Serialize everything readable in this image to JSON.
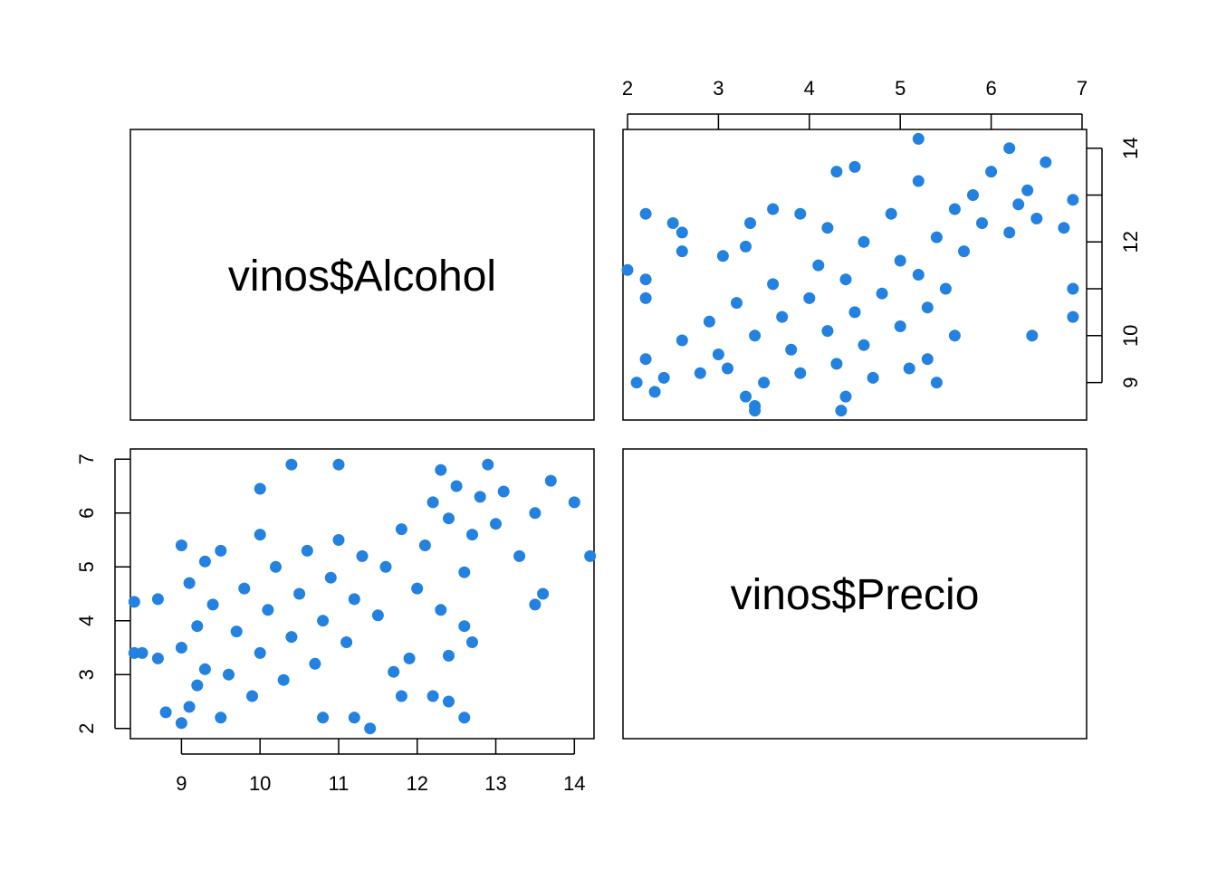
{
  "chart_data": {
    "type": "scatter",
    "variables": [
      "vinos$Alcohol",
      "vinos$Precio"
    ],
    "point_color": "#2381e0",
    "panels": [
      {
        "position": "row1-col2",
        "x_variable": "vinos$Precio",
        "y_variable": "vinos$Alcohol",
        "xlim": [
          1.95,
          7.05
        ],
        "ylim": [
          8.2,
          14.4
        ],
        "x_ticks": [
          2,
          3,
          4,
          5,
          6,
          7
        ],
        "y_ticks": [
          9,
          10,
          11,
          12,
          13,
          14
        ],
        "y_tick_labels": [
          "9",
          "10",
          "",
          "12",
          "",
          "14"
        ]
      },
      {
        "position": "row2-col1",
        "x_variable": "vinos$Alcohol",
        "y_variable": "vinos$Precio",
        "xlim": [
          8.35,
          14.25
        ],
        "ylim": [
          1.81,
          7.19
        ],
        "x_ticks": [
          9,
          10,
          11,
          12,
          13,
          14
        ],
        "y_ticks": [
          2,
          3,
          4,
          5,
          6,
          7
        ]
      }
    ],
    "points": [
      {
        "alcohol": 9.0,
        "precio": 2.1
      },
      {
        "alcohol": 9.1,
        "precio": 2.4
      },
      {
        "alcohol": 9.2,
        "precio": 2.8
      },
      {
        "alcohol": 9.3,
        "precio": 3.1
      },
      {
        "alcohol": 9.0,
        "precio": 3.5
      },
      {
        "alcohol": 9.2,
        "precio": 3.9
      },
      {
        "alcohol": 9.4,
        "precio": 4.3
      },
      {
        "alcohol": 9.1,
        "precio": 4.7
      },
      {
        "alcohol": 9.3,
        "precio": 5.1
      },
      {
        "alcohol": 9.0,
        "precio": 5.4
      },
      {
        "alcohol": 9.5,
        "precio": 2.2
      },
      {
        "alcohol": 9.6,
        "precio": 3.0
      },
      {
        "alcohol": 9.7,
        "precio": 3.8
      },
      {
        "alcohol": 9.8,
        "precio": 4.6
      },
      {
        "alcohol": 9.5,
        "precio": 5.3
      },
      {
        "alcohol": 9.9,
        "precio": 2.6
      },
      {
        "alcohol": 10.0,
        "precio": 3.4
      },
      {
        "alcohol": 10.1,
        "precio": 4.2
      },
      {
        "alcohol": 10.2,
        "precio": 5.0
      },
      {
        "alcohol": 10.0,
        "precio": 5.6
      },
      {
        "alcohol": 10.3,
        "precio": 2.9
      },
      {
        "alcohol": 10.4,
        "precio": 3.7
      },
      {
        "alcohol": 10.5,
        "precio": 4.5
      },
      {
        "alcohol": 10.6,
        "precio": 5.3
      },
      {
        "alcohol": 10.7,
        "precio": 3.2
      },
      {
        "alcohol": 10.8,
        "precio": 4.0
      },
      {
        "alcohol": 10.9,
        "precio": 4.8
      },
      {
        "alcohol": 11.0,
        "precio": 5.5
      },
      {
        "alcohol": 11.1,
        "precio": 3.6
      },
      {
        "alcohol": 11.2,
        "precio": 4.4
      },
      {
        "alcohol": 11.3,
        "precio": 5.2
      },
      {
        "alcohol": 11.5,
        "precio": 4.1
      },
      {
        "alcohol": 11.6,
        "precio": 5.0
      },
      {
        "alcohol": 11.8,
        "precio": 5.7
      },
      {
        "alcohol": 12.0,
        "precio": 4.6
      },
      {
        "alcohol": 12.1,
        "precio": 5.4
      },
      {
        "alcohol": 12.2,
        "precio": 6.2
      },
      {
        "alcohol": 12.3,
        "precio": 6.8
      },
      {
        "alcohol": 12.4,
        "precio": 5.9
      },
      {
        "alcohol": 12.5,
        "precio": 6.5
      },
      {
        "alcohol": 12.6,
        "precio": 4.9
      },
      {
        "alcohol": 12.7,
        "precio": 5.6
      },
      {
        "alcohol": 12.8,
        "precio": 6.3
      },
      {
        "alcohol": 12.9,
        "precio": 6.9
      },
      {
        "alcohol": 13.0,
        "precio": 5.8
      },
      {
        "alcohol": 13.1,
        "precio": 6.4
      },
      {
        "alcohol": 13.3,
        "precio": 5.2
      },
      {
        "alcohol": 13.5,
        "precio": 6.0
      },
      {
        "alcohol": 13.7,
        "precio": 6.6
      },
      {
        "alcohol": 14.0,
        "precio": 6.2
      },
      {
        "alcohol": 14.2,
        "precio": 5.2
      },
      {
        "alcohol": 12.3,
        "precio": 4.2
      },
      {
        "alcohol": 12.6,
        "precio": 3.9
      },
      {
        "alcohol": 11.9,
        "precio": 3.3
      },
      {
        "alcohol": 12.2,
        "precio": 2.6
      },
      {
        "alcohol": 12.6,
        "precio": 2.2
      },
      {
        "alcohol": 11.4,
        "precio": 2.0
      },
      {
        "alcohol": 8.4,
        "precio": 4.35
      },
      {
        "alcohol": 8.7,
        "precio": 4.4
      },
      {
        "alcohol": 8.4,
        "precio": 3.4
      },
      {
        "alcohol": 8.5,
        "precio": 3.4
      },
      {
        "alcohol": 8.7,
        "precio": 3.3
      },
      {
        "alcohol": 8.8,
        "precio": 2.3
      },
      {
        "alcohol": 10.4,
        "precio": 6.9
      },
      {
        "alcohol": 11.0,
        "precio": 6.9
      },
      {
        "alcohol": 10.0,
        "precio": 6.45
      },
      {
        "alcohol": 13.6,
        "precio": 4.5
      },
      {
        "alcohol": 13.5,
        "precio": 4.3
      },
      {
        "alcohol": 12.7,
        "precio": 3.6
      },
      {
        "alcohol": 12.4,
        "precio": 3.35
      },
      {
        "alcohol": 11.7,
        "precio": 3.05
      },
      {
        "alcohol": 11.8,
        "precio": 2.6
      },
      {
        "alcohol": 12.4,
        "precio": 2.5
      },
      {
        "alcohol": 10.8,
        "precio": 2.2
      },
      {
        "alcohol": 11.2,
        "precio": 2.2
      }
    ]
  }
}
